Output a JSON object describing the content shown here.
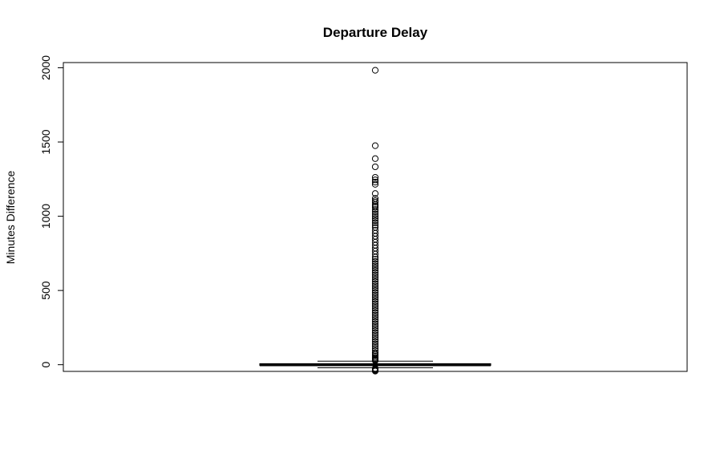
{
  "chart_data": {
    "type": "boxplot",
    "title": "Departure Delay",
    "xlabel": "",
    "ylabel": "Minutes Difference",
    "ylim": [
      -45,
      2035
    ],
    "y_ticks": [
      0,
      500,
      1000,
      1500,
      2000
    ],
    "y_tick_labels": [
      "0",
      "500",
      "1000",
      "1500",
      "2000"
    ],
    "grid": false,
    "legend": "none",
    "box": {
      "min": -21,
      "q1": -5,
      "median": -2,
      "q3": 7,
      "max": 24
    },
    "outliers": [
      1983,
      1475,
      1388,
      1333,
      1262,
      1245,
      1230,
      1215,
      1153,
      1120,
      1105,
      1095,
      1080,
      1070,
      1060,
      1045,
      1030,
      1015,
      1000,
      985,
      970,
      955,
      940,
      925,
      905,
      885,
      865,
      845,
      825,
      805,
      785,
      765,
      745,
      725,
      710,
      695,
      680,
      665,
      650,
      635,
      620,
      605,
      590,
      575,
      560,
      545,
      530,
      515,
      500,
      485,
      470,
      455,
      440,
      425,
      410,
      395,
      380,
      365,
      350,
      335,
      320,
      305,
      290,
      275,
      260,
      245,
      230,
      215,
      200,
      185,
      170,
      155,
      140,
      125,
      110,
      95,
      80,
      70,
      60,
      50,
      42,
      36,
      30,
      27,
      -25,
      -30,
      -35,
      -40,
      -43
    ],
    "colors": {
      "box": "#000000",
      "background": "#ffffff"
    }
  }
}
